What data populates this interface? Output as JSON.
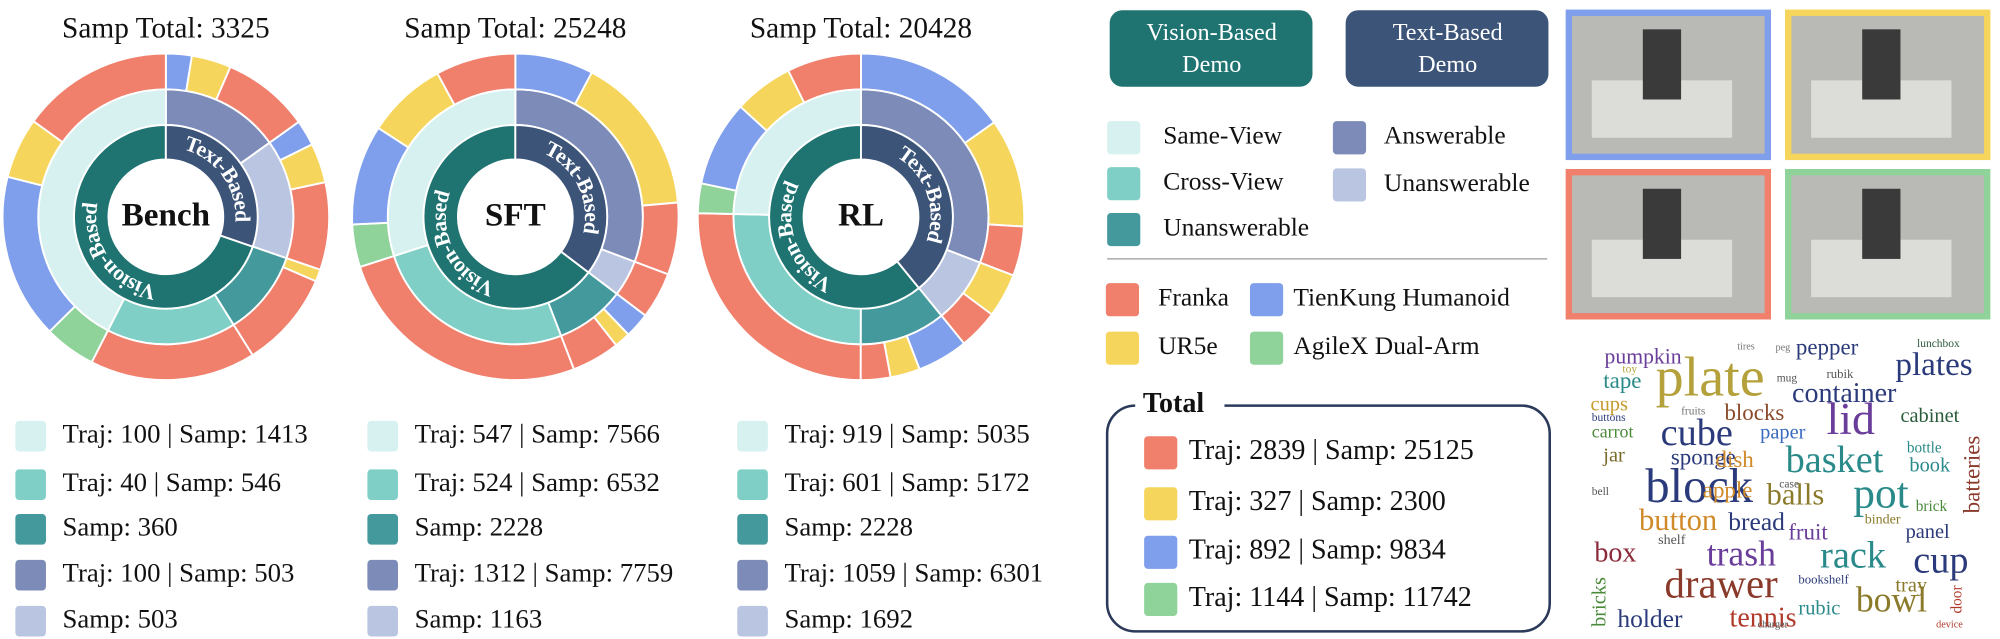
{
  "chart_data": [
    {
      "type": "sunburst",
      "title": "Samp Total: 3325",
      "center_label": "Bench",
      "group_labels": [
        "Vision-Based",
        "Text-Based"
      ],
      "values": [
        1413,
        546,
        360,
        503,
        503
      ],
      "value_labels": [
        "Traj: 100 | Samp: 1413",
        "Traj: 40 | Samp: 546",
        "Samp: 360",
        "Traj: 100 | Samp: 503",
        "Samp: 503"
      ],
      "robot_values": [
        [
          500,
          200,
          543,
          170
        ],
        [
          546,
          0,
          0,
          0
        ],
        [
          320,
          40,
          0,
          0
        ],
        [
          288,
          130,
          85,
          0
        ],
        [
          288,
          130,
          85,
          0
        ]
      ]
    },
    {
      "type": "sunburst",
      "title": "Samp Total: 25248",
      "center_label": "SFT",
      "group_labels": [
        "Vision-Based",
        "Text-Based"
      ],
      "values": [
        7566,
        6532,
        2228,
        7759,
        1163
      ],
      "value_labels": [
        "Traj: 547 | Samp: 7566",
        "Traj: 524 | Samp: 6532",
        "Samp: 2228",
        "Traj: 1312 | Samp: 7759",
        "Samp: 1163"
      ],
      "robot_values": [
        [
          2000,
          2000,
          2500,
          1066
        ],
        [
          6532,
          0,
          0,
          0
        ],
        [
          1200,
          400,
          628,
          0
        ],
        [
          1800,
          4000,
          1959,
          0
        ],
        [
          1163,
          0,
          0,
          0
        ]
      ]
    },
    {
      "type": "sunburst",
      "title": "Samp Total: 20428",
      "center_label": "RL",
      "group_labels": [
        "Vision-Based",
        "Text-Based"
      ],
      "values": [
        5035,
        5172,
        2228,
        6301,
        1692
      ],
      "value_labels": [
        "Traj: 919 | Samp: 5035",
        "Traj: 601 | Samp: 5172",
        "Samp: 2228",
        "Traj: 1059 | Samp: 6301",
        "Samp: 1692"
      ],
      "robot_values": [
        [
          1500,
          1200,
          1735,
          600
        ],
        [
          5172,
          0,
          0,
          0
        ],
        [
          600,
          600,
          1028,
          0
        ],
        [
          1000,
          2200,
          3101,
          0
        ],
        [
          800,
          892,
          0,
          0
        ]
      ]
    }
  ],
  "legend": {
    "demo_boxes": [
      {
        "lines": [
          "Vision-Based",
          "Demo"
        ],
        "color": "#1f7472"
      },
      {
        "lines": [
          "Text-Based",
          "Demo"
        ],
        "color": "#3c5478"
      }
    ],
    "subtypes": [
      {
        "name": "Same-View",
        "color": "#d6f1f0"
      },
      {
        "name": "Cross-View",
        "color": "#80cfc7"
      },
      {
        "name": "Unanswerable",
        "color": "#44999c"
      },
      {
        "name": "Answerable",
        "color": "#7d8bb8"
      },
      {
        "name": "Unanswerable",
        "color": "#bac5e1"
      }
    ],
    "robots": [
      {
        "name": "Franka",
        "color": "#f07f6c"
      },
      {
        "name": "UR5e",
        "color": "#f6d55c"
      },
      {
        "name": "TienKung Humanoid",
        "color": "#7f9fec"
      },
      {
        "name": "AgileX Dual-Arm",
        "color": "#8fd39b"
      }
    ],
    "total": {
      "title": "Total",
      "rows": [
        "Traj: 2839 | Samp: 25125",
        "Traj: 327 | Samp: 2300",
        "Traj: 892 | Samp: 9834",
        "Traj: 1144 | Samp: 11742"
      ]
    }
  },
  "wordcloud": {
    "words": [
      "pumpkin",
      "toy",
      "plate",
      "pepper",
      "tires",
      "peg",
      "lunchbox",
      "plates",
      "tape",
      "cups",
      "container",
      "rubik",
      "mug",
      "cube",
      "blocks",
      "paper",
      "lid",
      "cabinet",
      "carrot",
      "buttons",
      "sponge",
      "dish",
      "jar",
      "basket",
      "bottle",
      "book",
      "batteries",
      "block",
      "apple",
      "balls",
      "pot",
      "case",
      "brick",
      "panel",
      "button",
      "bread",
      "fruit",
      "binder",
      "box",
      "trash",
      "rack",
      "cup",
      "drawer",
      "bowl",
      "tray",
      "holder",
      "tennis",
      "rubic",
      "bookshelf",
      "bricks",
      "door",
      "fruits",
      "shelf",
      "device",
      "bell",
      "charger"
    ]
  }
}
